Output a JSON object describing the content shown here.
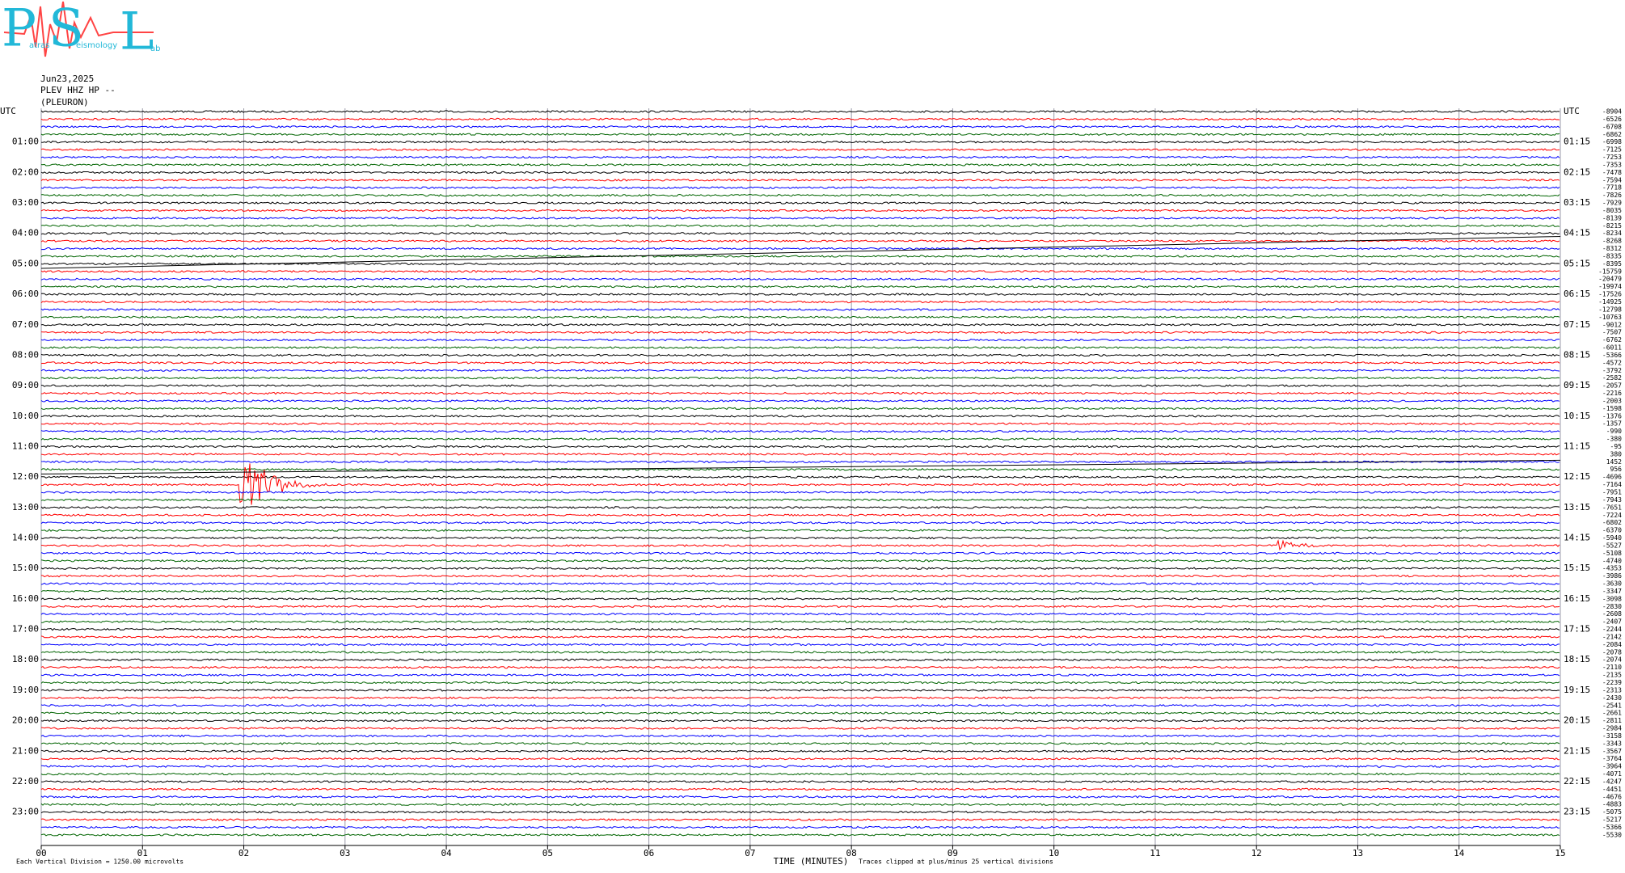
{
  "chart_data": {
    "type": "helicorder",
    "logo": {
      "letters": [
        "P",
        "S",
        "L"
      ],
      "words": [
        "atras",
        "eismology",
        "ab"
      ]
    },
    "date": "Jun23,2025",
    "station": "PLEV HHZ HP --",
    "site": "(PLEURON)",
    "left_labels": [
      "UTC",
      "01:00",
      "02:00",
      "03:00",
      "04:00",
      "05:00",
      "06:00",
      "07:00",
      "08:00",
      "09:00",
      "10:00",
      "11:00",
      "12:00",
      "13:00",
      "14:00",
      "15:00",
      "16:00",
      "17:00",
      "18:00",
      "19:00",
      "20:00",
      "21:00",
      "22:00",
      "23:00"
    ],
    "right_labels": [
      "UTC",
      "01:15",
      "02:15",
      "03:15",
      "04:15",
      "05:15",
      "06:15",
      "07:15",
      "08:15",
      "09:15",
      "10:15",
      "11:15",
      "12:15",
      "13:15",
      "14:15",
      "15:15",
      "16:15",
      "17:15",
      "18:15",
      "19:15",
      "20:15",
      "21:15",
      "22:15",
      "23:15"
    ],
    "trace_means": [
      -8904,
      -6526,
      -6708,
      -6862,
      -6998,
      -7125,
      -7253,
      -7353,
      -7478,
      -7594,
      -7718,
      -7826,
      -7929,
      -8035,
      -8139,
      -8215,
      -8234,
      -8268,
      -8312,
      -8335,
      -8395,
      -15759,
      -20479,
      -19974,
      -17526,
      -14925,
      -12798,
      -10763,
      -9012,
      -7507,
      -6762,
      -6011,
      -5366,
      -4572,
      -3792,
      -2582,
      -2057,
      -2216,
      -2003,
      -1598,
      -1376,
      -1357,
      -990,
      -380,
      -95,
      380,
      1452,
      956,
      -4696,
      -7164,
      -7951,
      -7943,
      -7651,
      -7224,
      -6802,
      -6370,
      -5940,
      -5527,
      -5108,
      -4740,
      -4353,
      -3986,
      -3630,
      -3347,
      -3098,
      -2830,
      -2608,
      -2407,
      -2244,
      -2142,
      -2084,
      -2078,
      -2074,
      -2110,
      -2135,
      -2239,
      -2313,
      -2430,
      -2541,
      -2661,
      -2811,
      -2984,
      -3158,
      -3343,
      -3567,
      -3764,
      -3964,
      -4071,
      -4247,
      -4451,
      -4676,
      -4883,
      -5075,
      -5217,
      -5366,
      -5530
    ],
    "colors": [
      "#000000",
      "#ff0000",
      "#0000ff",
      "#006400"
    ],
    "xlim": [
      0,
      15
    ],
    "xticks": [
      {
        "value": 0,
        "label": "00"
      },
      {
        "value": 1,
        "label": "01"
      },
      {
        "value": 2,
        "label": "02"
      },
      {
        "value": 3,
        "label": "03"
      },
      {
        "value": 4,
        "label": "04"
      },
      {
        "value": 5,
        "label": "05"
      },
      {
        "value": 6,
        "label": "06"
      },
      {
        "value": 7,
        "label": "07"
      },
      {
        "value": 8,
        "label": "08"
      },
      {
        "value": 9,
        "label": "09"
      },
      10,
      11,
      12,
      13,
      14,
      15
    ],
    "xlabel": "TIME (MINUTES)",
    "scale_note": "Each Vertical Division = 1250.00 microvolts",
    "clip_note": "Traces clipped at plus/minus 25 vertical divisions",
    "grid": true
  }
}
